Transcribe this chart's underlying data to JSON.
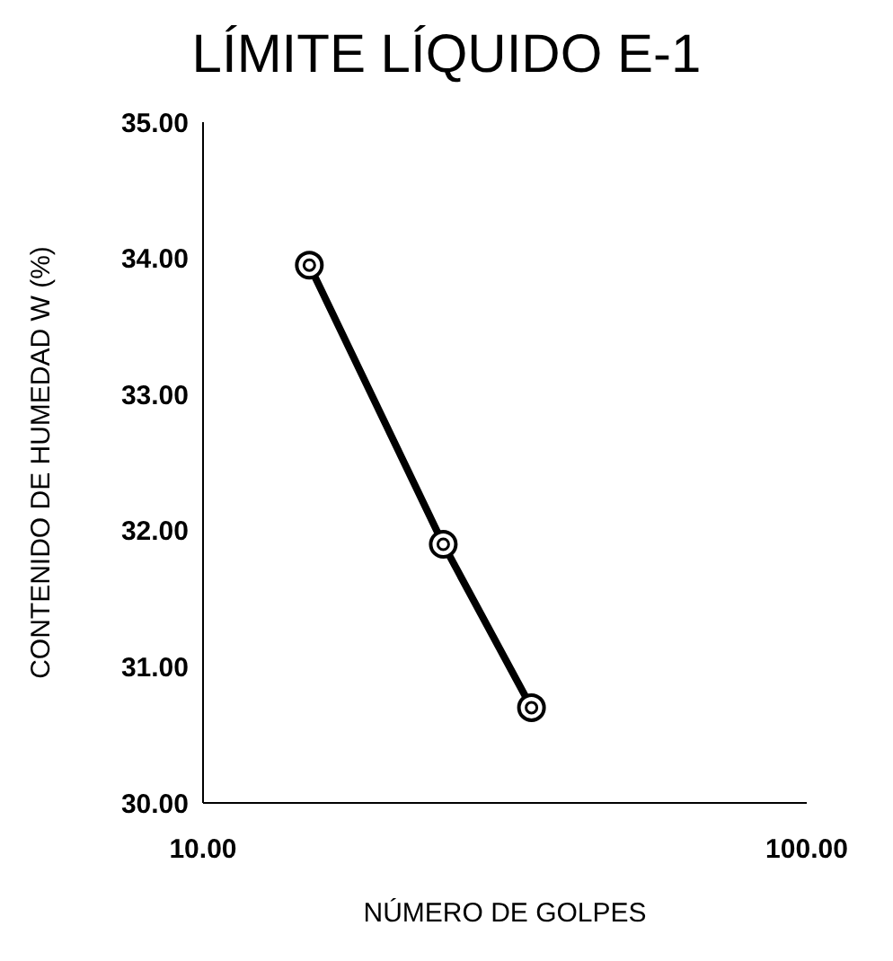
{
  "chart_data": {
    "type": "line",
    "title": "LÍMITE LÍQUIDO E-1",
    "xlabel": "NÚMERO DE GOLPES",
    "ylabel": "CONTENIDO DE HUMEDAD W (%)",
    "x": [
      15,
      25,
      35
    ],
    "series": [
      {
        "color": "#000000",
        "values": [
          33.95,
          31.9,
          30.7
        ]
      }
    ],
    "log": "x",
    "xlim": [
      10,
      100
    ],
    "xticks": [
      {
        "value": 10,
        "label": "10.00"
      },
      {
        "value": 100,
        "label": "100.00"
      }
    ],
    "ylim": [
      30,
      35
    ],
    "yticks": [
      {
        "value": 30,
        "label": "30.00"
      },
      {
        "value": 31,
        "label": "31.00"
      },
      {
        "value": 32,
        "label": "32.00"
      },
      {
        "value": 33,
        "label": "33.00"
      },
      {
        "value": 34,
        "label": "34.00"
      },
      {
        "value": 35,
        "label": "35.00"
      }
    ],
    "marker": "circle",
    "grid": false,
    "legend": false
  }
}
